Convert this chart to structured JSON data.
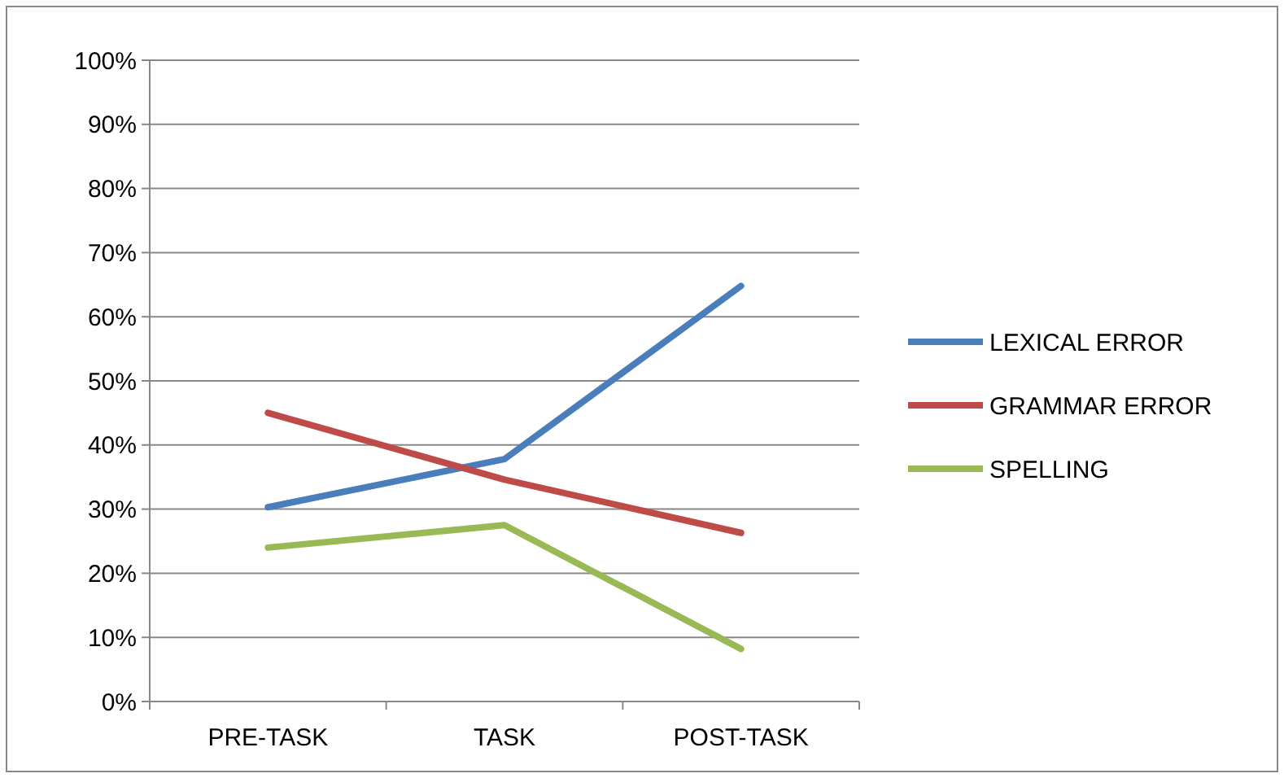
{
  "chart_data": {
    "type": "line",
    "categories": [
      "PRE-TASK",
      "TASK",
      "POST-TASK"
    ],
    "series": [
      {
        "name": "LEXICAL ERROR",
        "color": "#4a7ebb",
        "values": [
          30.3,
          37.8,
          64.8
        ]
      },
      {
        "name": "GRAMMAR ERROR",
        "color": "#be4b48",
        "values": [
          45.0,
          34.6,
          26.3
        ]
      },
      {
        "name": "SPELLING",
        "color": "#98b954",
        "values": [
          24.0,
          27.5,
          8.2
        ]
      }
    ],
    "ylim": [
      0,
      100
    ],
    "yticks": [
      {
        "value": 0,
        "label": "0%"
      },
      {
        "value": 10,
        "label": "10%"
      },
      {
        "value": 20,
        "label": "20%"
      },
      {
        "value": 30,
        "label": "30%"
      },
      {
        "value": 40,
        "label": "40%"
      },
      {
        "value": 50,
        "label": "50%"
      },
      {
        "value": 60,
        "label": "60%"
      },
      {
        "value": 70,
        "label": "70%"
      },
      {
        "value": 80,
        "label": "80%"
      },
      {
        "value": 90,
        "label": "90%"
      },
      {
        "value": 100,
        "label": "100%"
      }
    ],
    "grid": "y",
    "legend": "right",
    "marker": "none",
    "line_style": "solid"
  }
}
